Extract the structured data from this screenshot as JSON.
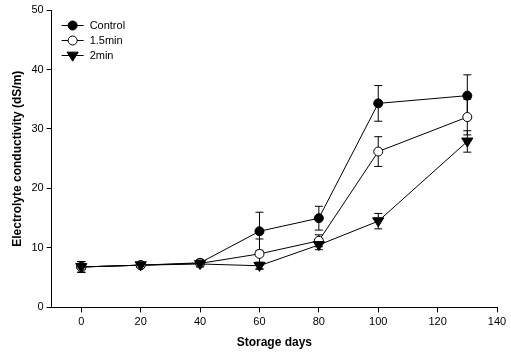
{
  "chart_data": {
    "type": "line",
    "x_label": "Storage days",
    "y_label": "Electrolyte conductivity (dS/m)",
    "x": [
      0,
      20,
      40,
      60,
      80,
      100,
      130
    ],
    "series": [
      {
        "name": "Control",
        "color": "#000000",
        "marker": "circle",
        "values": [
          6.8,
          7.1,
          7.5,
          12.8,
          15.0,
          34.3,
          35.6
        ],
        "errors": [
          0.9,
          0.4,
          0.5,
          3.2,
          2.0,
          3.0,
          3.5
        ]
      },
      {
        "name": "1.5min",
        "color": "#000000",
        "marker": "circle_open",
        "values": [
          6.8,
          7.1,
          7.4,
          9.0,
          11.2,
          26.2,
          32.0
        ],
        "errors": [
          0.9,
          0.4,
          0.5,
          2.5,
          1.0,
          2.5,
          3.0
        ]
      },
      {
        "name": "2min",
        "color": "#000000",
        "marker": "triangle_down",
        "values": [
          6.8,
          7.1,
          7.3,
          7.0,
          10.5,
          14.5,
          27.9
        ],
        "errors": [
          0.9,
          0.4,
          0.5,
          0.6,
          0.8,
          1.3,
          1.8
        ]
      }
    ],
    "xlim": [
      -10,
      140
    ],
    "xticks": [
      0,
      20,
      40,
      60,
      80,
      100,
      120,
      140
    ],
    "ylim": [
      0,
      50
    ],
    "yticks": [
      0,
      10,
      20,
      30,
      40,
      50
    ],
    "grid": false,
    "legend": "upper left"
  }
}
